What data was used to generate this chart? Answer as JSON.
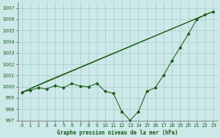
{
  "title": "Graphe pression niveau de la mer (hPa)",
  "background_color": "#cce8e8",
  "grid_color": "#aacccc",
  "line_color": "#1a5c1a",
  "xlim": [
    -0.5,
    23.5
  ],
  "ylim": [
    997,
    1007.5
  ],
  "xticks": [
    0,
    1,
    2,
    3,
    4,
    5,
    6,
    7,
    8,
    9,
    10,
    11,
    12,
    13,
    14,
    15,
    16,
    17,
    18,
    19,
    20,
    21,
    22,
    23
  ],
  "yticks": [
    997,
    998,
    999,
    1000,
    1001,
    1002,
    1003,
    1004,
    1005,
    1006,
    1007
  ],
  "series1_x": [
    0,
    1,
    2,
    3,
    4,
    5,
    6,
    7,
    8,
    9,
    10,
    11,
    12,
    13,
    14,
    15,
    16,
    17,
    18,
    19,
    20,
    21,
    22,
    23
  ],
  "series1_y": [
    999.5,
    999.7,
    999.9,
    999.8,
    1000.1,
    999.9,
    1000.3,
    1000.05,
    1000.0,
    1000.3,
    999.6,
    999.4,
    997.8,
    997.0,
    997.8,
    999.6,
    999.9,
    1001.0,
    1002.3,
    1003.5,
    1004.7,
    1006.0,
    1006.4,
    1006.7
  ],
  "series2_x": [
    0,
    3,
    23
  ],
  "series2_y": [
    999.5,
    1000.5,
    1006.7
  ],
  "series3_x": [
    0,
    23
  ],
  "series3_y": [
    999.5,
    1006.7
  ],
  "title_fontsize": 5.5,
  "tick_fontsize": 5,
  "figsize": [
    3.2,
    2.0
  ],
  "dpi": 100
}
